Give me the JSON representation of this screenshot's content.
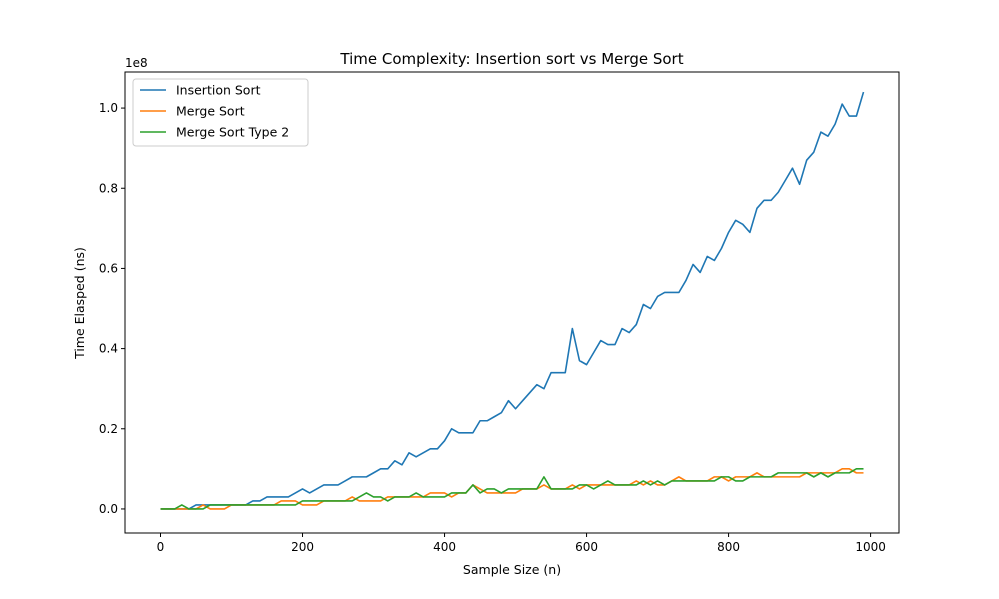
{
  "chart_data": {
    "type": "line",
    "title": "Time Complexity: Insertion sort vs Merge Sort",
    "xlabel": "Sample Size (n)",
    "ylabel": "Time Elasped (ns)",
    "y_scale_label": "1e8",
    "xlim": [
      -50,
      1040
    ],
    "ylim": [
      -0.06,
      1.09
    ],
    "xticks": [
      0,
      200,
      400,
      600,
      800,
      1000
    ],
    "yticks": [
      0.0,
      0.2,
      0.4,
      0.6,
      0.8,
      1.0
    ],
    "xtick_labels": [
      "0",
      "200",
      "400",
      "600",
      "800",
      "1000"
    ],
    "ytick_labels": [
      "0.0",
      "0.2",
      "0.4",
      "0.6",
      "0.8",
      "1.0"
    ],
    "grid": false,
    "legend_position": "upper-left",
    "x": [
      0,
      10,
      20,
      30,
      40,
      50,
      60,
      70,
      80,
      90,
      100,
      110,
      120,
      130,
      140,
      150,
      160,
      170,
      180,
      190,
      200,
      210,
      220,
      230,
      240,
      250,
      260,
      270,
      280,
      290,
      300,
      310,
      320,
      330,
      340,
      350,
      360,
      370,
      380,
      390,
      400,
      410,
      420,
      430,
      440,
      450,
      460,
      470,
      480,
      490,
      500,
      510,
      520,
      530,
      540,
      550,
      560,
      570,
      580,
      590,
      600,
      610,
      620,
      630,
      640,
      650,
      660,
      670,
      680,
      690,
      700,
      710,
      720,
      730,
      740,
      750,
      760,
      770,
      780,
      790,
      800,
      810,
      820,
      830,
      840,
      850,
      860,
      870,
      880,
      890,
      900,
      910,
      920,
      930,
      940,
      950,
      960,
      970,
      980,
      990
    ],
    "series": [
      {
        "name": "Insertion Sort",
        "color": "#1f77b4",
        "values": [
          0.0,
          0.0,
          0.0,
          0.0,
          0.0,
          0.01,
          0.01,
          0.01,
          0.01,
          0.01,
          0.01,
          0.01,
          0.01,
          0.02,
          0.02,
          0.03,
          0.03,
          0.03,
          0.03,
          0.04,
          0.05,
          0.04,
          0.05,
          0.06,
          0.06,
          0.06,
          0.07,
          0.08,
          0.08,
          0.08,
          0.09,
          0.1,
          0.1,
          0.12,
          0.11,
          0.14,
          0.13,
          0.14,
          0.15,
          0.15,
          0.17,
          0.2,
          0.19,
          0.19,
          0.19,
          0.22,
          0.22,
          0.23,
          0.24,
          0.27,
          0.25,
          0.27,
          0.29,
          0.31,
          0.3,
          0.34,
          0.34,
          0.34,
          0.45,
          0.37,
          0.36,
          0.39,
          0.42,
          0.41,
          0.41,
          0.45,
          0.44,
          0.46,
          0.51,
          0.5,
          0.53,
          0.54,
          0.54,
          0.54,
          0.57,
          0.61,
          0.59,
          0.63,
          0.62,
          0.65,
          0.69,
          0.72,
          0.71,
          0.69,
          0.75,
          0.77,
          0.77,
          0.79,
          0.82,
          0.85,
          0.81,
          0.87,
          0.89,
          0.94,
          0.93,
          0.96,
          1.01,
          0.98,
          0.98,
          1.04
        ]
      },
      {
        "name": "Merge Sort",
        "color": "#ff7f0e",
        "values": [
          0.0,
          0.0,
          0.0,
          0.0,
          0.0,
          0.0,
          0.01,
          0.0,
          0.0,
          0.0,
          0.01,
          0.01,
          0.01,
          0.01,
          0.01,
          0.01,
          0.01,
          0.02,
          0.02,
          0.02,
          0.01,
          0.01,
          0.01,
          0.02,
          0.02,
          0.02,
          0.02,
          0.03,
          0.02,
          0.02,
          0.02,
          0.02,
          0.03,
          0.03,
          0.03,
          0.03,
          0.03,
          0.03,
          0.04,
          0.04,
          0.04,
          0.03,
          0.04,
          0.04,
          0.06,
          0.05,
          0.04,
          0.04,
          0.04,
          0.04,
          0.04,
          0.05,
          0.05,
          0.05,
          0.06,
          0.05,
          0.05,
          0.05,
          0.06,
          0.05,
          0.06,
          0.06,
          0.06,
          0.06,
          0.06,
          0.06,
          0.06,
          0.07,
          0.06,
          0.07,
          0.06,
          0.06,
          0.07,
          0.08,
          0.07,
          0.07,
          0.07,
          0.07,
          0.08,
          0.08,
          0.07,
          0.08,
          0.08,
          0.08,
          0.09,
          0.08,
          0.08,
          0.08,
          0.08,
          0.08,
          0.08,
          0.09,
          0.09,
          0.09,
          0.09,
          0.09,
          0.1,
          0.1,
          0.09,
          0.09
        ]
      },
      {
        "name": "Merge Sort Type 2",
        "color": "#2ca02c",
        "values": [
          0.0,
          0.0,
          0.0,
          0.01,
          0.0,
          0.0,
          0.0,
          0.01,
          0.01,
          0.01,
          0.01,
          0.01,
          0.01,
          0.01,
          0.01,
          0.01,
          0.01,
          0.01,
          0.01,
          0.01,
          0.02,
          0.02,
          0.02,
          0.02,
          0.02,
          0.02,
          0.02,
          0.02,
          0.03,
          0.04,
          0.03,
          0.03,
          0.02,
          0.03,
          0.03,
          0.03,
          0.04,
          0.03,
          0.03,
          0.03,
          0.03,
          0.04,
          0.04,
          0.04,
          0.06,
          0.04,
          0.05,
          0.05,
          0.04,
          0.05,
          0.05,
          0.05,
          0.05,
          0.05,
          0.08,
          0.05,
          0.05,
          0.05,
          0.05,
          0.06,
          0.06,
          0.05,
          0.06,
          0.07,
          0.06,
          0.06,
          0.06,
          0.06,
          0.07,
          0.06,
          0.07,
          0.06,
          0.07,
          0.07,
          0.07,
          0.07,
          0.07,
          0.07,
          0.07,
          0.08,
          0.08,
          0.07,
          0.07,
          0.08,
          0.08,
          0.08,
          0.08,
          0.09,
          0.09,
          0.09,
          0.09,
          0.09,
          0.08,
          0.09,
          0.08,
          0.09,
          0.09,
          0.09,
          0.1,
          0.1
        ]
      }
    ]
  }
}
